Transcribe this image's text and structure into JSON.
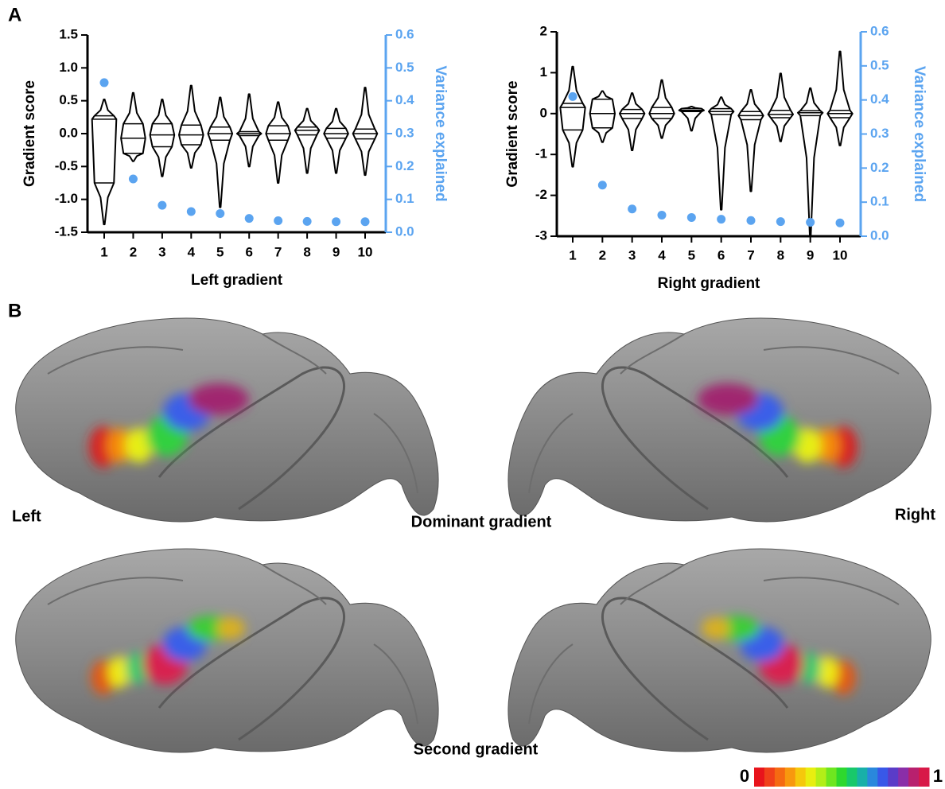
{
  "panel_labels": [
    "A",
    "B"
  ],
  "chart_data": [
    {
      "type": "violin",
      "ylabel": "Gradient score",
      "y2label": "Variance explained",
      "xlabel": "Left gradient",
      "categories": [
        "1",
        "2",
        "3",
        "4",
        "5",
        "6",
        "7",
        "8",
        "9",
        "10"
      ],
      "violins": [
        {
          "min": -1.38,
          "q1": -0.75,
          "median": 0.22,
          "q3": 0.27,
          "max": 0.52
        },
        {
          "min": -0.42,
          "q1": -0.3,
          "median": -0.07,
          "q3": 0.15,
          "max": 0.62
        },
        {
          "min": -0.65,
          "q1": -0.2,
          "median": -0.02,
          "q3": 0.15,
          "max": 0.52
        },
        {
          "min": -0.52,
          "q1": -0.17,
          "median": -0.02,
          "q3": 0.13,
          "max": 0.73
        },
        {
          "min": -1.12,
          "q1": -0.1,
          "median": 0.0,
          "q3": 0.1,
          "max": 0.55
        },
        {
          "min": -0.5,
          "q1": -0.03,
          "median": 0.0,
          "q3": 0.03,
          "max": 0.6
        },
        {
          "min": -0.75,
          "q1": -0.1,
          "median": 0.0,
          "q3": 0.12,
          "max": 0.48
        },
        {
          "min": -0.6,
          "q1": -0.02,
          "median": 0.05,
          "q3": 0.1,
          "max": 0.38
        },
        {
          "min": -0.6,
          "q1": -0.07,
          "median": 0.0,
          "q3": 0.08,
          "max": 0.38
        },
        {
          "min": -0.63,
          "q1": -0.08,
          "median": 0.0,
          "q3": 0.07,
          "max": 0.7
        }
      ],
      "series": [
        {
          "axis": "y2",
          "color": "#5ba4f0",
          "values": [
            0.455,
            0.162,
            0.082,
            0.063,
            0.057,
            0.042,
            0.035,
            0.033,
            0.032,
            0.032
          ]
        }
      ],
      "ylim": [
        -1.5,
        1.5
      ],
      "yticks": [
        -1.5,
        {
          "value": -1,
          "label": "-1.0"
        },
        -0.5,
        {
          "value": 0,
          "label": "0.0"
        },
        0.5,
        {
          "value": 1,
          "label": "1.0"
        },
        1.5
      ],
      "y2lim": [
        0,
        0.6
      ],
      "y2ticks": [
        {
          "value": 0,
          "label": "0.0"
        },
        0.1,
        0.2,
        0.3,
        0.4,
        0.5,
        0.6
      ]
    },
    {
      "type": "violin",
      "ylabel": "Gradient score",
      "y2label": "Variance explained",
      "xlabel": "Right gradient",
      "categories": [
        "1",
        "2",
        "3",
        "4",
        "5",
        "6",
        "7",
        "8",
        "9",
        "10"
      ],
      "violins": [
        {
          "min": -1.3,
          "q1": -0.4,
          "median": 0.15,
          "q3": 0.25,
          "max": 1.15
        },
        {
          "min": -0.7,
          "q1": -0.35,
          "median": 0.0,
          "q3": 0.35,
          "max": 0.55
        },
        {
          "min": -0.9,
          "q1": -0.12,
          "median": 0.0,
          "q3": 0.1,
          "max": 0.5
        },
        {
          "min": -0.6,
          "q1": -0.12,
          "median": 0.0,
          "q3": 0.15,
          "max": 0.82
        },
        {
          "min": -0.42,
          "q1": 0.05,
          "median": 0.08,
          "q3": 0.12,
          "max": 0.17
        },
        {
          "min": -2.35,
          "q1": -0.02,
          "median": 0.05,
          "q3": 0.12,
          "max": 0.4
        },
        {
          "min": -1.9,
          "q1": -0.15,
          "median": -0.05,
          "q3": 0.05,
          "max": 0.58
        },
        {
          "min": -0.68,
          "q1": -0.1,
          "median": -0.02,
          "q3": 0.08,
          "max": 0.98
        },
        {
          "min": -3.0,
          "q1": -0.05,
          "median": 0.02,
          "q3": 0.07,
          "max": 0.62
        },
        {
          "min": -0.78,
          "q1": -0.1,
          "median": 0.0,
          "q3": 0.08,
          "max": 1.52
        }
      ],
      "series": [
        {
          "axis": "y2",
          "color": "#5ba4f0",
          "values": [
            0.41,
            0.15,
            0.08,
            0.062,
            0.055,
            0.05,
            0.046,
            0.043,
            0.041,
            0.039
          ]
        }
      ],
      "ylim": [
        -3,
        2
      ],
      "yticks": [
        -3,
        -2,
        -1,
        0,
        1,
        2
      ],
      "y2lim": [
        0,
        0.6
      ],
      "y2ticks": [
        {
          "value": 0,
          "label": "0.0"
        },
        0.1,
        0.2,
        0.3,
        0.4,
        0.5,
        0.6
      ]
    }
  ],
  "brain_figure": {
    "left_label": "Left",
    "right_label": "Right",
    "rows": [
      "Dominant gradient",
      "Second gradient"
    ],
    "colorbar": {
      "range": [
        0,
        1
      ],
      "colors": [
        "#e8141c",
        "#f0401a",
        "#f56a12",
        "#f8980e",
        "#f5c80c",
        "#e8ee10",
        "#b2ee18",
        "#6ee620",
        "#2ed82e",
        "#18c86a",
        "#18b0a8",
        "#2a88dc",
        "#3858e8",
        "#5a3cc8",
        "#8a2ea8",
        "#b8206e",
        "#d81848"
      ]
    }
  }
}
